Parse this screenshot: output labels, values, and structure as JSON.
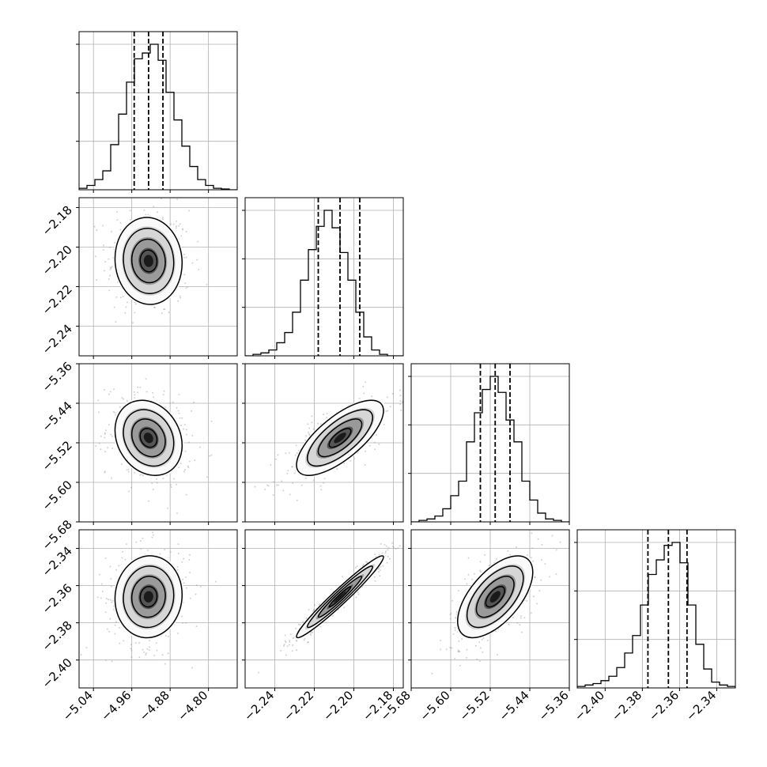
{
  "chart_data": {
    "type": "corner",
    "title": "",
    "n_params": 4,
    "param_labels": [
      "",
      "",
      "",
      ""
    ],
    "colors": {
      "hist": "#000000",
      "grid": "#b0b0b0",
      "scatter": "#9a9a9a",
      "quantile": "#000000"
    },
    "grid": true,
    "ranges": [
      [
        -5.07,
        -4.74
      ],
      [
        -2.255,
        -2.175
      ],
      [
        -5.68,
        -5.36
      ],
      [
        -2.415,
        -2.33
      ]
    ],
    "ticks": [
      {
        "values": [
          -5.04,
          -4.96,
          -4.88,
          -4.8
        ],
        "labels": [
          "−5.04",
          "−4.96",
          "−4.88",
          "−4.80"
        ]
      },
      {
        "values": [
          -2.24,
          -2.22,
          -2.2,
          -2.18
        ],
        "labels": [
          "−2.24",
          "−2.22",
          "−2.20",
          "−2.18"
        ]
      },
      {
        "values": [
          -5.68,
          -5.6,
          -5.52,
          -5.44,
          -5.36
        ],
        "labels": [
          "−5.68",
          "−5.60",
          "−5.52",
          "−5.44",
          "−5.36"
        ]
      },
      {
        "values": [
          -2.4,
          -2.38,
          -2.36,
          -2.34
        ],
        "labels": [
          "−2.40",
          "−2.38",
          "−2.36",
          "−2.34"
        ]
      }
    ],
    "quantiles": [
      [
        -4.955,
        -4.925,
        -4.895
      ],
      [
        -2.218,
        -2.207,
        -2.197
      ],
      [
        -5.54,
        -5.51,
        -5.48
      ],
      [
        -2.377,
        -2.366,
        -2.356
      ]
    ],
    "histograms": [
      [
        0.01,
        0.03,
        0.07,
        0.13,
        0.31,
        0.52,
        0.74,
        0.9,
        0.94,
        1.0,
        0.89,
        0.67,
        0.48,
        0.3,
        0.16,
        0.07,
        0.03,
        0.01,
        0.005,
        0.0
      ],
      [
        0.0,
        0.01,
        0.02,
        0.04,
        0.09,
        0.16,
        0.3,
        0.52,
        0.73,
        0.89,
        1.0,
        0.88,
        0.71,
        0.52,
        0.3,
        0.13,
        0.04,
        0.01,
        0.0,
        0.0
      ],
      [
        0.0,
        0.01,
        0.02,
        0.04,
        0.09,
        0.18,
        0.28,
        0.55,
        0.75,
        0.91,
        1.0,
        0.89,
        0.7,
        0.55,
        0.28,
        0.15,
        0.06,
        0.02,
        0.01,
        0.0
      ],
      [
        0.01,
        0.02,
        0.03,
        0.05,
        0.08,
        0.14,
        0.24,
        0.36,
        0.57,
        0.78,
        0.88,
        0.98,
        1.0,
        0.86,
        0.57,
        0.3,
        0.13,
        0.04,
        0.02,
        0.01
      ]
    ],
    "pair_stats": [
      {
        "x": 0,
        "y": 1,
        "mx": -4.925,
        "my": -2.207,
        "sx": 0.035,
        "sy": 0.011,
        "rho": -0.05
      },
      {
        "x": 0,
        "y": 2,
        "mx": -4.925,
        "my": -5.51,
        "sx": 0.035,
        "sy": 0.038,
        "rho": -0.2
      },
      {
        "x": 1,
        "y": 2,
        "mx": -2.207,
        "my": -5.51,
        "sx": 0.011,
        "sy": 0.038,
        "rho": 0.72
      },
      {
        "x": 0,
        "y": 3,
        "mx": -4.925,
        "my": -2.366,
        "sx": 0.035,
        "sy": 0.011,
        "rho": 0.05
      },
      {
        "x": 1,
        "y": 3,
        "mx": -2.207,
        "my": -2.366,
        "sx": 0.011,
        "sy": 0.011,
        "rho": 0.97
      },
      {
        "x": 2,
        "y": 3,
        "mx": -5.51,
        "my": -2.366,
        "sx": 0.038,
        "sy": 0.011,
        "rho": 0.6
      }
    ]
  }
}
